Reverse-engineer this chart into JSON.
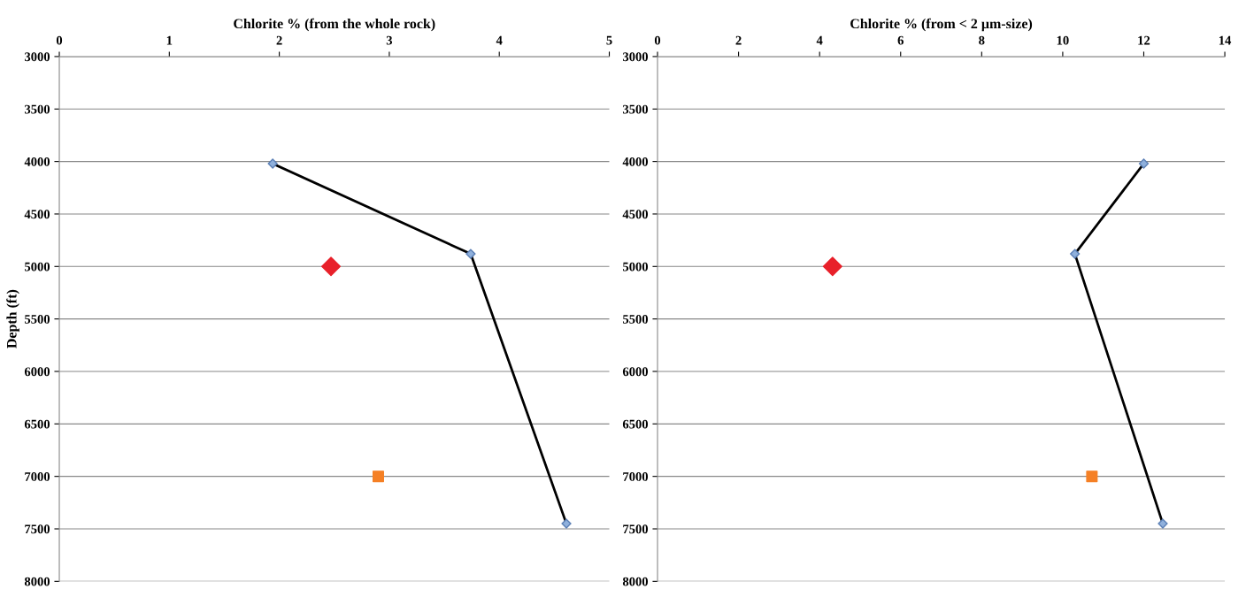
{
  "chart_data": [
    {
      "type": "line",
      "xlabel": "Chlorite % (from the whole rock)",
      "ylabel": "Depth (ft)",
      "xlim": [
        0,
        5
      ],
      "xticks": [
        0,
        1,
        2,
        3,
        4,
        5
      ],
      "ylim": [
        8000,
        3000
      ],
      "yticks": [
        3000,
        3500,
        4000,
        4500,
        5000,
        5500,
        6000,
        6500,
        7000,
        7500,
        8000
      ],
      "grid": "y",
      "legend": false,
      "series": [
        {
          "color": "#000000",
          "marker": "diamond",
          "x": [
            1.94,
            3.74,
            4.61
          ],
          "values": [
            4020,
            4880,
            7450
          ]
        },
        {
          "type": "scatter",
          "color": "#e8202a",
          "marker": "diamond",
          "x": [
            2.47
          ],
          "values": [
            5000
          ]
        },
        {
          "type": "scatter",
          "color": "#f58025",
          "marker": "square",
          "x": [
            2.9
          ],
          "values": [
            7000
          ]
        }
      ]
    },
    {
      "type": "line",
      "xlabel": "Chlorite % (from < 2 µm-size)",
      "xlim": [
        0,
        14
      ],
      "xticks": [
        0,
        2,
        4,
        6,
        8,
        10,
        12,
        14
      ],
      "ylim": [
        8000,
        3000
      ],
      "yticks": [
        3000,
        3500,
        4000,
        4500,
        5000,
        5500,
        6000,
        6500,
        7000,
        7500,
        8000
      ],
      "grid": "y",
      "legend": false,
      "series": [
        {
          "color": "#000000",
          "marker": "diamond",
          "x": [
            12.0,
            10.3,
            12.47
          ],
          "values": [
            4020,
            4880,
            7450
          ]
        },
        {
          "type": "scatter",
          "color": "#e8202a",
          "marker": "diamond",
          "x": [
            4.32
          ],
          "values": [
            5000
          ]
        },
        {
          "type": "scatter",
          "color": "#f58025",
          "marker": "square",
          "x": [
            10.72
          ],
          "values": [
            7000
          ]
        }
      ]
    }
  ]
}
